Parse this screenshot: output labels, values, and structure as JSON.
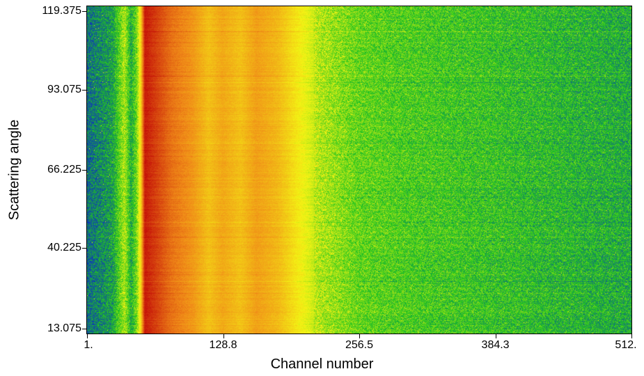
{
  "chart_data": {
    "type": "heatmap",
    "xlabel": "Channel number",
    "ylabel": "Scattering angle",
    "xlim": [
      1,
      512
    ],
    "ylim": [
      13.075,
      119.375
    ],
    "xticks": [
      {
        "value": 1,
        "label": "1."
      },
      {
        "value": 128.8,
        "label": "128.8"
      },
      {
        "value": 256.5,
        "label": "256.5"
      },
      {
        "value": 384.3,
        "label": "384.3"
      },
      {
        "value": 512,
        "label": "512."
      }
    ],
    "yticks": [
      {
        "value": 13.075,
        "label": "13.075"
      },
      {
        "value": 40.225,
        "label": "40.225"
      },
      {
        "value": 66.225,
        "label": "66.225"
      },
      {
        "value": 93.075,
        "label": "93.075"
      },
      {
        "value": 119.375,
        "label": "119.375"
      }
    ],
    "colormap": [
      "#0a1fd6",
      "#1fc41f",
      "#f4f414",
      "#f08a18",
      "#c41008"
    ],
    "intensity_profile": [
      {
        "channel": 1,
        "intensity": 0.12
      },
      {
        "channel": 25,
        "intensity": 0.2
      },
      {
        "channel": 36,
        "intensity": 0.42
      },
      {
        "channel": 42,
        "intensity": 0.22
      },
      {
        "channel": 47,
        "intensity": 0.34
      },
      {
        "channel": 51,
        "intensity": 0.55
      },
      {
        "channel": 55,
        "intensity": 0.98
      },
      {
        "channel": 62,
        "intensity": 0.93
      },
      {
        "channel": 80,
        "intensity": 0.8
      },
      {
        "channel": 100,
        "intensity": 0.72
      },
      {
        "channel": 115,
        "intensity": 0.62
      },
      {
        "channel": 128,
        "intensity": 0.68
      },
      {
        "channel": 145,
        "intensity": 0.62
      },
      {
        "channel": 160,
        "intensity": 0.7
      },
      {
        "channel": 180,
        "intensity": 0.64
      },
      {
        "channel": 200,
        "intensity": 0.52
      },
      {
        "channel": 220,
        "intensity": 0.42
      },
      {
        "channel": 256,
        "intensity": 0.33
      },
      {
        "channel": 300,
        "intensity": 0.3
      },
      {
        "channel": 384,
        "intensity": 0.27
      },
      {
        "channel": 512,
        "intensity": 0.22
      }
    ]
  }
}
